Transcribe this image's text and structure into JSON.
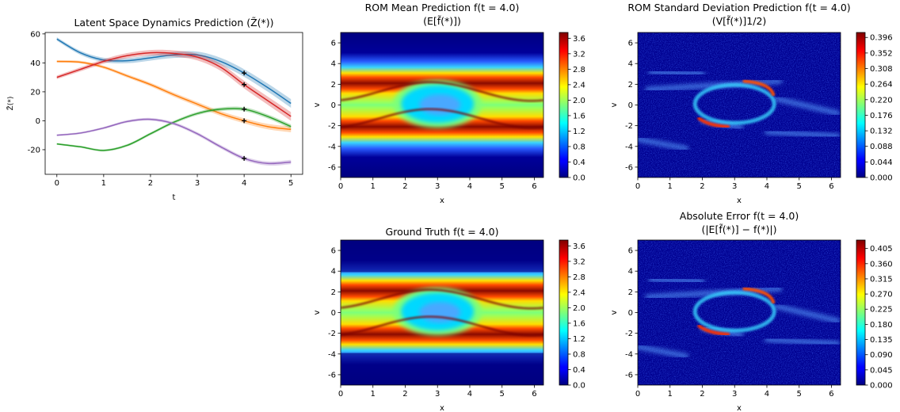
{
  "chart_data": [
    {
      "type": "line",
      "title": "Latent Space Dynamics Prediction (Z̃(*))",
      "xlabel": "t",
      "ylabel": "Z̃(*)",
      "xlim": [
        -0.25,
        5.25
      ],
      "ylim": [
        -37,
        61
      ],
      "x_ticks": [
        0,
        1,
        2,
        3,
        4,
        5
      ],
      "y_ticks": [
        -20,
        0,
        20,
        40,
        60
      ],
      "markers": {
        "t": 4.0,
        "symbol": "+"
      },
      "x": [
        0,
        0.5,
        1,
        1.5,
        2,
        2.5,
        3,
        3.5,
        4,
        4.5,
        5
      ],
      "series": [
        {
          "color": "#1f77b4",
          "values": [
            56.5,
            47,
            42,
            41.5,
            43.5,
            45.5,
            45.5,
            41,
            33,
            23,
            12
          ],
          "band": 3
        },
        {
          "color": "#ff7f0e",
          "values": [
            41,
            40.5,
            37,
            31,
            25,
            18,
            11.5,
            5,
            0,
            -4,
            -6
          ],
          "band": 2
        },
        {
          "color": "#2ca02c",
          "values": [
            -16,
            -18,
            -20.5,
            -17,
            -9,
            -1,
            5,
            8,
            8,
            3,
            -4
          ],
          "band": 1.5
        },
        {
          "color": "#d62728",
          "values": [
            30,
            35.5,
            41,
            45,
            47,
            46.5,
            44,
            37,
            25,
            14,
            3
          ],
          "band": 3
        },
        {
          "color": "#9467bd",
          "values": [
            -10,
            -8.5,
            -5,
            -0.5,
            1,
            -2,
            -9,
            -18,
            -26,
            -29.5,
            -28.5
          ],
          "band": 1.5
        }
      ]
    },
    {
      "type": "heatmap",
      "title_line1": "ROM Mean Prediction f(t = 4.0)",
      "title_line2": "(E[f̃(*)])",
      "xlabel": "x",
      "ylabel": "v",
      "xlim": [
        0,
        6.283
      ],
      "ylim": [
        -7,
        7
      ],
      "x_ticks": [
        0,
        1,
        2,
        3,
        4,
        5,
        6
      ],
      "y_ticks": [
        -6,
        -4,
        -2,
        0,
        2,
        4,
        6
      ],
      "colorbar_ticks": [
        "0.0",
        "0.4",
        "0.8",
        "1.2",
        "1.6",
        "2.0",
        "2.4",
        "2.8",
        "3.2",
        "3.6"
      ],
      "colorbar_range": [
        0,
        3.75
      ]
    },
    {
      "type": "heatmap",
      "title_line1": "ROM Standard Deviation Prediction f(t = 4.0)",
      "title_line2": "(V[f̃(*)]1/2)",
      "xlabel": "x",
      "ylabel": "v",
      "xlim": [
        0,
        6.283
      ],
      "ylim": [
        -7,
        7
      ],
      "x_ticks": [
        0,
        1,
        2,
        3,
        4,
        5,
        6
      ],
      "y_ticks": [
        -6,
        -4,
        -2,
        0,
        2,
        4,
        6
      ],
      "colorbar_ticks": [
        "0.000",
        "0.044",
        "0.088",
        "0.132",
        "0.176",
        "0.220",
        "0.264",
        "0.308",
        "0.352",
        "0.396"
      ],
      "colorbar_range": [
        0,
        0.41
      ]
    },
    {
      "type": "heatmap",
      "title_line1": "Ground Truth f(t = 4.0)",
      "xlabel": "x",
      "ylabel": "v",
      "xlim": [
        0,
        6.283
      ],
      "ylim": [
        -7,
        7
      ],
      "x_ticks": [
        0,
        1,
        2,
        3,
        4,
        5,
        6
      ],
      "y_ticks": [
        -6,
        -4,
        -2,
        0,
        2,
        4,
        6
      ],
      "colorbar_ticks": [
        "0.0",
        "0.4",
        "0.8",
        "1.2",
        "1.6",
        "2.0",
        "2.4",
        "2.8",
        "3.2",
        "3.6"
      ],
      "colorbar_range": [
        0,
        3.75
      ]
    },
    {
      "type": "heatmap",
      "title_line1": "Absolute Error f(t = 4.0)",
      "title_line2": "(|E[f̃(*)] − f(*)|)",
      "xlabel": "x",
      "ylabel": "v",
      "xlim": [
        0,
        6.283
      ],
      "ylim": [
        -7,
        7
      ],
      "x_ticks": [
        0,
        1,
        2,
        3,
        4,
        5,
        6
      ],
      "y_ticks": [
        -6,
        -4,
        -2,
        0,
        2,
        4,
        6
      ],
      "colorbar_ticks": [
        "0.000",
        "0.045",
        "0.090",
        "0.135",
        "0.180",
        "0.225",
        "0.270",
        "0.315",
        "0.360",
        "0.405"
      ],
      "colorbar_range": [
        0,
        0.43
      ]
    }
  ]
}
